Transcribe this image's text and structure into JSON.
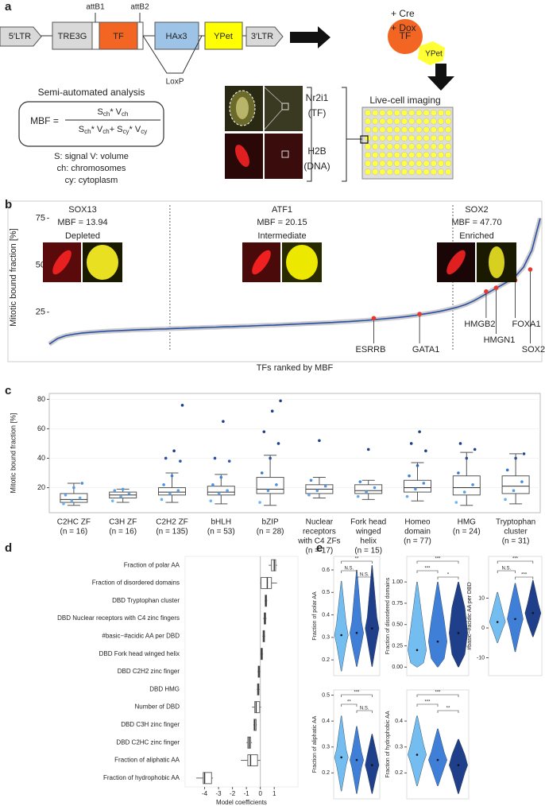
{
  "panel_labels": [
    "a",
    "b",
    "c",
    "d",
    "e"
  ],
  "construct": {
    "attB1": "attB1",
    "attB2": "attB2",
    "segments": [
      "5′LTR",
      "TRE3G",
      "TF",
      "HAx3",
      "YPet",
      "3′LTR"
    ],
    "loxp": "LoxP",
    "treatment": [
      "+ Cre",
      "+ Dox"
    ],
    "protein": [
      "TF",
      "YPet"
    ],
    "imaging": "Live-cell imaging"
  },
  "analysis": {
    "title": "Semi-automated analysis",
    "lhs": "MBF =",
    "numerator": [
      [
        "S",
        "ch"
      ],
      [
        "* V",
        "ch"
      ]
    ],
    "denominator": [
      [
        "S",
        "ch"
      ],
      [
        "* V",
        "ch"
      ],
      [
        "+ S",
        "cy"
      ],
      [
        "* V",
        "cy"
      ]
    ],
    "legend": [
      "S: signal   V: volume",
      "ch: chromosomes",
      "cy: cytoplasm"
    ]
  },
  "micrograph_labels": [
    [
      "Nr2i1",
      "(TF)"
    ],
    [
      "H2B",
      "(DNA)"
    ]
  ],
  "chart_data": [
    {
      "type": "line",
      "x_label": "TFs ranked by MBF",
      "y_label": "Mitotic bound fraction [%]",
      "color": "#2b4fa8",
      "ylim": [
        5,
        82
      ],
      "yticks": [
        25,
        50,
        75
      ],
      "xlim": [
        0,
        59
      ],
      "separators_x": [
        14.5,
        48.5
      ],
      "values": [
        8,
        11,
        12.5,
        13.3,
        13.9,
        14.3,
        14.6,
        14.9,
        15.1,
        15.3,
        15.5,
        15.7,
        15.8,
        16,
        16.1,
        16.3,
        16.4,
        16.6,
        16.7,
        16.9,
        17,
        17.2,
        17.3,
        17.5,
        17.6,
        17.8,
        18,
        18.1,
        18.3,
        18.5,
        18.7,
        18.9,
        19.1,
        19.3,
        19.5,
        19.8,
        20,
        20.3,
        20.6,
        21,
        21.4,
        21.8,
        22.2,
        22.7,
        23.3,
        24,
        24.7,
        25.5,
        26.5,
        27.6,
        29,
        31,
        33.5,
        36,
        38.5,
        41,
        44,
        49,
        58,
        75
      ],
      "highlights": {
        "color": "#e8392f",
        "names": [
          "ESRRB",
          "GATA1",
          "HMGB2",
          "HMGN1",
          "FOXA1",
          "SOX2"
        ],
        "x": [
          39,
          44.5,
          52.5,
          53.7,
          56,
          57.8
        ],
        "values": [
          21.8,
          24,
          36,
          38,
          42,
          47.7
        ]
      },
      "insets": [
        {
          "name": "SOX13",
          "label": "MBF = 13.94",
          "class": "Depleted",
          "color": "#6fb6f0"
        },
        {
          "name": "ATF1",
          "label": "MBF = 20.15",
          "class": "Intermediate",
          "color": "#3f7fd8"
        },
        {
          "name": "SOX2",
          "label": "MBF = 47.70",
          "class": "Enriched",
          "color": "#1f3f8a"
        }
      ]
    },
    {
      "type": "box",
      "y_label": "Mitotic bound fraction [%]",
      "ylim": [
        3,
        84
      ],
      "yticks": [
        20,
        40,
        60,
        80
      ],
      "point_colors": [
        "#6fb6f0",
        "#3f7fd8",
        "#1f3f8a"
      ],
      "categories": [
        [
          "C2HC ZF",
          "(n = 16)"
        ],
        [
          "C3H ZF",
          "(n = 16)"
        ],
        [
          "C2H2 ZF",
          "(n = 135)"
        ],
        [
          "bHLH",
          "(n = 53)"
        ],
        [
          "bZIP",
          "(n = 28)"
        ],
        [
          "Nuclear",
          "receptors",
          "with C4 ZFs",
          "(n = 17)"
        ],
        [
          "Fork head",
          "winged",
          "helix",
          "(n = 15)"
        ],
        [
          "Homeo",
          "domain",
          "(n = 77)"
        ],
        [
          "HMG",
          "(n = 24)"
        ],
        [
          "Tryptophan",
          "cluster",
          "(n = 31)"
        ]
      ],
      "stats": [
        [
          8,
          10,
          12,
          16,
          23
        ],
        [
          10,
          13,
          15,
          17,
          19
        ],
        [
          10,
          15,
          17,
          20,
          30
        ],
        [
          9,
          15,
          17,
          21,
          29
        ],
        [
          8,
          16,
          19,
          27,
          42
        ],
        [
          13,
          16,
          19,
          22,
          27
        ],
        [
          12,
          16,
          18,
          22,
          25
        ],
        [
          11,
          17,
          20,
          25,
          37
        ],
        [
          8,
          15,
          20,
          28,
          44
        ],
        [
          9,
          16,
          21,
          28,
          43
        ]
      ],
      "points": [
        [
          9,
          11,
          13,
          15,
          20,
          23
        ],
        [
          11,
          14,
          16,
          18,
          19
        ],
        [
          12,
          16,
          18,
          22,
          28,
          38,
          40,
          45,
          76
        ],
        [
          11,
          16,
          18,
          22,
          27,
          38,
          40,
          65
        ],
        [
          10,
          18,
          22,
          30,
          40,
          50,
          58,
          72,
          79
        ],
        [
          15,
          18,
          21,
          25,
          52
        ],
        [
          14,
          17,
          20,
          24,
          46
        ],
        [
          14,
          19,
          23,
          28,
          35,
          45,
          50,
          58
        ],
        [
          10,
          17,
          22,
          30,
          40,
          46,
          50
        ],
        [
          12,
          18,
          24,
          32,
          40,
          43
        ]
      ]
    },
    {
      "type": "hbox",
      "x_label": "Model coefficients",
      "xlim": [
        -5.4,
        2.7
      ],
      "xticks": [
        -4,
        -3,
        -2,
        -1,
        0,
        1
      ],
      "zero_line": true,
      "categories": [
        "Fraction of polar AA",
        "Fraction of disordered domains",
        "DBD Tryptophan cluster",
        "DBD Nuclear receptors with C4 zinc fingers",
        "#basic−#acidic AA per DBD",
        "DBD Fork head winged helix",
        "DBD C2H2 zinc finger",
        "DBD HMG",
        "Number of DBD",
        "DBD C3H zinc finger",
        "DBD C2HC zinc finger",
        "Fraction of aliphatic AA",
        "Fraction of hydrophobic AA"
      ],
      "stats": [
        [
          0.6,
          0.8,
          1.0,
          1.1,
          1.2
        ],
        [
          0.0,
          0.05,
          0.5,
          0.8,
          1.2
        ],
        [
          0.3,
          0.35,
          0.4,
          0.45,
          0.5
        ],
        [
          0.2,
          0.28,
          0.33,
          0.38,
          0.45
        ],
        [
          0.15,
          0.2,
          0.25,
          0.3,
          0.35
        ],
        [
          0.0,
          0.05,
          0.1,
          0.15,
          0.2
        ],
        [
          -0.2,
          -0.15,
          -0.1,
          -0.05,
          0
        ],
        [
          -0.25,
          -0.2,
          -0.15,
          -0.1,
          -0.05
        ],
        [
          -0.6,
          -0.4,
          -0.3,
          -0.05,
          0.05
        ],
        [
          -0.5,
          -0.45,
          -0.4,
          -0.3,
          -0.25
        ],
        [
          -1.0,
          -0.9,
          -0.8,
          -0.7,
          -0.6
        ],
        [
          -1.4,
          -0.9,
          -0.7,
          -0.2,
          0.0
        ],
        [
          -4.6,
          -4.1,
          -4.0,
          -3.5,
          -3.4
        ]
      ]
    },
    {
      "type": "violin",
      "y_label": "Fraction of polar AA",
      "ylim": [
        0.13,
        0.66
      ],
      "yticks": [
        0.2,
        0.3,
        0.4,
        0.5,
        0.6
      ],
      "colors": [
        "#73bdf0",
        "#3f7fd8",
        "#1f3f8a"
      ],
      "significance": [
        "**",
        "N.S.",
        "N.S."
      ],
      "stats": [
        [
          0.15,
          0.27,
          0.31,
          0.36,
          0.55
        ],
        [
          0.17,
          0.27,
          0.32,
          0.37,
          0.6
        ],
        [
          0.17,
          0.29,
          0.34,
          0.39,
          0.62
        ]
      ]
    },
    {
      "type": "violin",
      "y_label": "Fraction of disordered domains",
      "ylim": [
        -0.1,
        1.3
      ],
      "yticks": [
        {
          "value": 0,
          "label": "0.00"
        },
        {
          "value": 0.25,
          "label": "0.25"
        },
        {
          "value": 0.5,
          "label": "0.50"
        },
        {
          "value": 0.75,
          "label": "0.75"
        },
        {
          "value": 1,
          "label": "1.00"
        }
      ],
      "colors": [
        "#73bdf0",
        "#3f7fd8",
        "#1f3f8a"
      ],
      "significance": [
        "***",
        "***",
        "*"
      ],
      "stats": [
        [
          0,
          0.05,
          0.2,
          0.45,
          1.0
        ],
        [
          0,
          0.1,
          0.3,
          0.55,
          1.0
        ],
        [
          0,
          0.15,
          0.4,
          0.7,
          1.0
        ]
      ]
    },
    {
      "type": "violin",
      "y_label": "#basic−#acidic AA per DBD",
      "ylim": [
        -16,
        24
      ],
      "yticks": [
        -10,
        0,
        10
      ],
      "colors": [
        "#73bdf0",
        "#3f7fd8",
        "#1f3f8a"
      ],
      "significance": [
        "***",
        "N.S.",
        "***"
      ],
      "stats": [
        [
          -5,
          0,
          2,
          5,
          12
        ],
        [
          -8,
          0,
          3,
          7,
          15
        ],
        [
          -3,
          2,
          5,
          8,
          16
        ]
      ]
    },
    {
      "type": "violin",
      "y_label": "Fraction of aliphatic AA",
      "ylim": [
        0.1,
        0.52
      ],
      "yticks": [
        0.2,
        0.3,
        0.4,
        0.5
      ],
      "colors": [
        "#73bdf0",
        "#3f7fd8",
        "#1f3f8a"
      ],
      "significance": [
        "***",
        "**",
        "N.S."
      ],
      "stats": [
        [
          0.13,
          0.23,
          0.26,
          0.29,
          0.42
        ],
        [
          0.12,
          0.22,
          0.25,
          0.28,
          0.38
        ],
        [
          0.12,
          0.2,
          0.23,
          0.27,
          0.35
        ]
      ]
    },
    {
      "type": "violin",
      "y_label": "Fraction of hydrophobic AA",
      "ylim": [
        0.1,
        0.52
      ],
      "yticks": [
        0.2,
        0.3,
        0.4
      ],
      "colors": [
        "#73bdf0",
        "#3f7fd8",
        "#1f3f8a"
      ],
      "significance": [
        "***",
        "***",
        "**"
      ],
      "stats": [
        [
          0.15,
          0.24,
          0.27,
          0.31,
          0.42
        ],
        [
          0.15,
          0.22,
          0.25,
          0.28,
          0.37
        ],
        [
          0.12,
          0.2,
          0.23,
          0.27,
          0.33
        ]
      ]
    }
  ]
}
